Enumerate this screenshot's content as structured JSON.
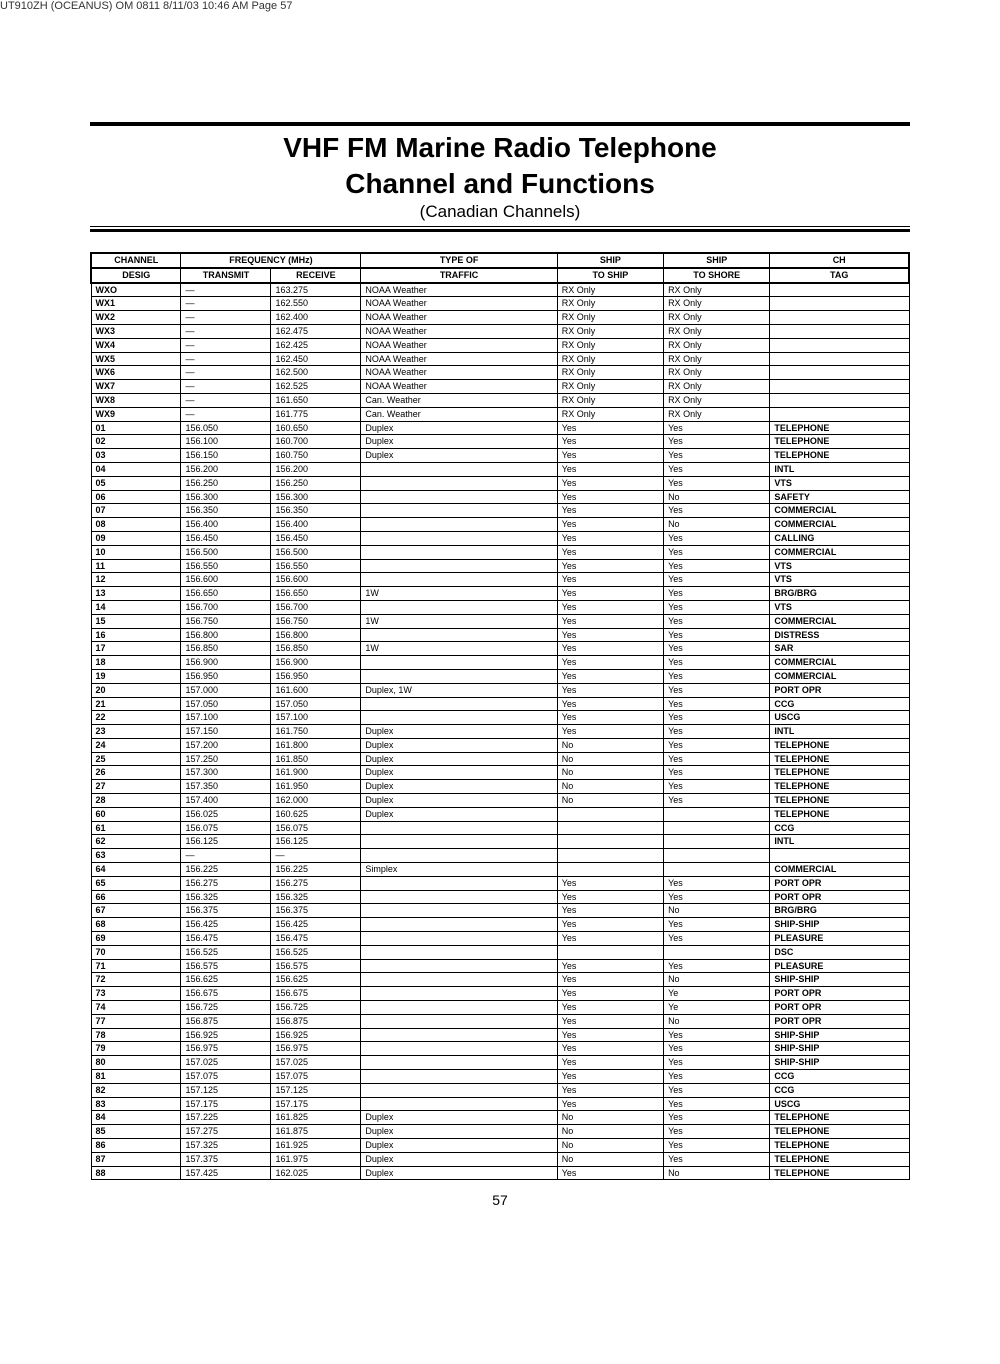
{
  "meta": {
    "header_text": "UT910ZH (OCEANUS) OM 0811   8/11/03   10:46 AM   Page 57"
  },
  "title": {
    "main1": "VHF FM Marine Radio Telephone",
    "main2": "Channel and Functions",
    "sub": "(Canadian Channels)"
  },
  "table": {
    "headers": {
      "h1a": "CHANNEL",
      "h1b": "DESIG",
      "h2": "FREQUENCY (MHz)",
      "h2a": "TRANSMIT",
      "h2b": "RECEIVE",
      "h3a": "TYPE OF",
      "h3b": "TRAFFIC",
      "h4a": "SHIP",
      "h4b": "TO SHIP",
      "h5a": "SHIP",
      "h5b": "TO SHORE",
      "h6a": "CH",
      "h6b": "TAG"
    },
    "rows": [
      [
        "WXO",
        "—",
        "163.275",
        "NOAA Weather",
        "RX Only",
        "RX Only",
        ""
      ],
      [
        "WX1",
        "—",
        "162.550",
        "NOAA Weather",
        "RX Only",
        "RX Only",
        ""
      ],
      [
        "WX2",
        "—",
        "162.400",
        "NOAA Weather",
        "RX Only",
        "RX Only",
        ""
      ],
      [
        "WX3",
        "—",
        "162.475",
        "NOAA Weather",
        "RX Only",
        "RX Only",
        ""
      ],
      [
        "WX4",
        "—",
        "162.425",
        "NOAA Weather",
        "RX Only",
        "RX Only",
        ""
      ],
      [
        "WX5",
        "—",
        "162.450",
        "NOAA Weather",
        "RX Only",
        "RX Only",
        ""
      ],
      [
        "WX6",
        "—",
        "162.500",
        "NOAA Weather",
        "RX Only",
        "RX Only",
        ""
      ],
      [
        "WX7",
        "—",
        "162.525",
        "NOAA Weather",
        "RX Only",
        "RX Only",
        ""
      ],
      [
        "WX8",
        "—",
        "161.650",
        "Can. Weather",
        "RX Only",
        "RX Only",
        ""
      ],
      [
        "WX9",
        "—",
        "161.775",
        "Can. Weather",
        "RX Only",
        "RX Only",
        ""
      ],
      [
        "01",
        "156.050",
        "160.650",
        "Duplex",
        "Yes",
        "Yes",
        "TELEPHONE"
      ],
      [
        "02",
        "156.100",
        "160.700",
        "Duplex",
        "Yes",
        "Yes",
        "TELEPHONE"
      ],
      [
        "03",
        "156.150",
        "160.750",
        "Duplex",
        "Yes",
        "Yes",
        "TELEPHONE"
      ],
      [
        "04",
        "156.200",
        "156.200",
        "",
        "Yes",
        "Yes",
        "INTL"
      ],
      [
        "05",
        "156.250",
        "156.250",
        "",
        "Yes",
        "Yes",
        "VTS"
      ],
      [
        "06",
        "156.300",
        "156.300",
        "",
        "Yes",
        "No",
        "SAFETY"
      ],
      [
        "07",
        "156.350",
        "156.350",
        "",
        "Yes",
        "Yes",
        "COMMERCIAL"
      ],
      [
        "08",
        "156.400",
        "156.400",
        "",
        "Yes",
        "No",
        "COMMERCIAL"
      ],
      [
        "09",
        "156.450",
        "156.450",
        "",
        "Yes",
        "Yes",
        "CALLING"
      ],
      [
        "10",
        "156.500",
        "156.500",
        "",
        "Yes",
        "Yes",
        "COMMERCIAL"
      ],
      [
        "11",
        "156.550",
        "156.550",
        "",
        "Yes",
        "Yes",
        "VTS"
      ],
      [
        "12",
        "156.600",
        "156.600",
        "",
        "Yes",
        "Yes",
        "VTS"
      ],
      [
        "13",
        "156.650",
        "156.650",
        "1W",
        "Yes",
        "Yes",
        "BRG/BRG"
      ],
      [
        "14",
        "156.700",
        "156.700",
        "",
        "Yes",
        "Yes",
        "VTS"
      ],
      [
        "15",
        "156.750",
        "156.750",
        "1W",
        "Yes",
        "Yes",
        "COMMERCIAL"
      ],
      [
        "16",
        "156.800",
        "156.800",
        "",
        "Yes",
        "Yes",
        "DISTRESS"
      ],
      [
        "17",
        "156.850",
        "156.850",
        "1W",
        "Yes",
        "Yes",
        "SAR"
      ],
      [
        "18",
        "156.900",
        "156.900",
        "",
        "Yes",
        "Yes",
        "COMMERCIAL"
      ],
      [
        "19",
        "156.950",
        "156.950",
        "",
        "Yes",
        "Yes",
        "COMMERCIAL"
      ],
      [
        "20",
        "157.000",
        "161.600",
        "Duplex, 1W",
        "Yes",
        "Yes",
        "PORT OPR"
      ],
      [
        "21",
        "157.050",
        "157.050",
        "",
        "Yes",
        "Yes",
        "CCG"
      ],
      [
        "22",
        "157.100",
        "157.100",
        "",
        "Yes",
        "Yes",
        "USCG"
      ],
      [
        "23",
        "157.150",
        "161.750",
        "Duplex",
        "Yes",
        "Yes",
        "INTL"
      ],
      [
        "24",
        "157.200",
        "161.800",
        "Duplex",
        "No",
        "Yes",
        "TELEPHONE"
      ],
      [
        "25",
        "157.250",
        "161.850",
        "Duplex",
        "No",
        "Yes",
        "TELEPHONE"
      ],
      [
        "26",
        "157.300",
        "161.900",
        "Duplex",
        "No",
        "Yes",
        "TELEPHONE"
      ],
      [
        "27",
        "157.350",
        "161.950",
        "Duplex",
        "No",
        "Yes",
        "TELEPHONE"
      ],
      [
        "28",
        "157.400",
        "162.000",
        "Duplex",
        "No",
        "Yes",
        "TELEPHONE"
      ],
      [
        "60",
        "156.025",
        "160.625",
        "Duplex",
        "",
        "",
        "TELEPHONE"
      ],
      [
        "61",
        "156.075",
        "156.075",
        "",
        "",
        "",
        "CCG"
      ],
      [
        "62",
        "156.125",
        "156.125",
        "",
        "",
        "",
        "INTL"
      ],
      [
        "63",
        "—",
        "—",
        "",
        "",
        "",
        ""
      ],
      [
        "64",
        "156.225",
        "156.225",
        "Simplex",
        "",
        "",
        "COMMERCIAL"
      ],
      [
        "65",
        "156.275",
        "156.275",
        "",
        "Yes",
        "Yes",
        "PORT OPR"
      ],
      [
        "66",
        "156.325",
        "156.325",
        "",
        "Yes",
        "Yes",
        "PORT OPR"
      ],
      [
        "67",
        "156.375",
        "156.375",
        "",
        "Yes",
        "No",
        "BRG/BRG"
      ],
      [
        "68",
        "156.425",
        "156.425",
        "",
        "Yes",
        "Yes",
        "SHIP-SHIP"
      ],
      [
        "69",
        "156.475",
        "156.475",
        "",
        "Yes",
        "Yes",
        "PLEASURE"
      ],
      [
        "70",
        "156.525",
        "156.525",
        "",
        "",
        "",
        "DSC"
      ],
      [
        "71",
        "156.575",
        "156.575",
        "",
        "Yes",
        "Yes",
        "PLEASURE"
      ],
      [
        "72",
        "156.625",
        "156.625",
        "",
        "Yes",
        "No",
        "SHIP-SHIP"
      ],
      [
        "73",
        "156.675",
        "156.675",
        "",
        "Yes",
        "Ye",
        "PORT OPR"
      ],
      [
        "74",
        "156.725",
        "156.725",
        "",
        "Yes",
        "Ye",
        "PORT OPR"
      ],
      [
        "77",
        "156.875",
        "156.875",
        "",
        "Yes",
        "No",
        "PORT OPR"
      ],
      [
        "78",
        "156.925",
        "156.925",
        "",
        "Yes",
        "Yes",
        "SHIP-SHIP"
      ],
      [
        "79",
        "156.975",
        "156.975",
        "",
        "Yes",
        "Yes",
        "SHIP-SHIP"
      ],
      [
        "80",
        "157.025",
        "157.025",
        "",
        "Yes",
        "Yes",
        "SHIP-SHIP"
      ],
      [
        "81",
        "157.075",
        "157.075",
        "",
        "Yes",
        "Yes",
        "CCG"
      ],
      [
        "82",
        "157.125",
        "157.125",
        "",
        "Yes",
        "Yes",
        "CCG"
      ],
      [
        "83",
        "157.175",
        "157.175",
        "",
        "Yes",
        "Yes",
        "USCG"
      ],
      [
        "84",
        "157.225",
        "161.825",
        "Duplex",
        "No",
        "Yes",
        "TELEPHONE"
      ],
      [
        "85",
        "157.275",
        "161.875",
        "Duplex",
        "No",
        "Yes",
        "TELEPHONE"
      ],
      [
        "86",
        "157.325",
        "161.925",
        "Duplex",
        "No",
        "Yes",
        "TELEPHONE"
      ],
      [
        "87",
        "157.375",
        "161.975",
        "Duplex",
        "No",
        "Yes",
        "TELEPHONE"
      ],
      [
        "88",
        "157.425",
        "162.025",
        "Duplex",
        "Yes",
        "No",
        "TELEPHONE"
      ]
    ],
    "col_widths": [
      "11%",
      "11%",
      "11%",
      "24%",
      "13%",
      "13%",
      "17%"
    ]
  },
  "page_number": "57"
}
